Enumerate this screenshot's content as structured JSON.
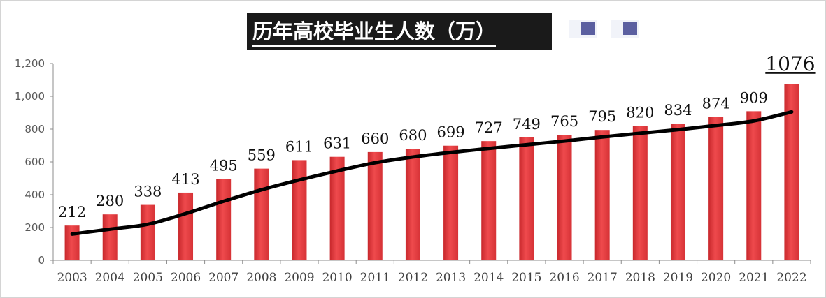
{
  "chart_data": {
    "type": "bar",
    "title": "历年高校毕业生人数（万）",
    "categories": [
      "2003",
      "2004",
      "2005",
      "2006",
      "2007",
      "2008",
      "2009",
      "2010",
      "2011",
      "2012",
      "2013",
      "2014",
      "2015",
      "2016",
      "2017",
      "2018",
      "2019",
      "2020",
      "2021",
      "2022"
    ],
    "series": [
      {
        "values": [
          212,
          280,
          338,
          413,
          495,
          559,
          611,
          631,
          660,
          680,
          699,
          727,
          749,
          765,
          795,
          820,
          834,
          874,
          909,
          1076
        ],
        "color": "#e03a3e"
      }
    ],
    "trend_line": {
      "values": [
        160,
        190,
        220,
        285,
        360,
        430,
        490,
        545,
        595,
        630,
        658,
        682,
        705,
        727,
        752,
        775,
        797,
        822,
        850,
        905
      ],
      "color": "#000000"
    },
    "data_labels": [
      "212",
      "280",
      "338",
      "413",
      "495",
      "559",
      "611",
      "631",
      "660",
      "680",
      "699",
      "727",
      "749",
      "765",
      "795",
      "820",
      "834",
      "874",
      "909",
      "1076"
    ],
    "ylim": [
      0,
      1200
    ],
    "yticks": [
      0,
      200,
      400,
      600,
      800,
      1000,
      1200
    ],
    "ytick_labels": [
      "0",
      "200",
      "400",
      "600",
      "800",
      "1,000",
      "1,200"
    ],
    "grid": false,
    "legend_colors": [
      "#5b5fa0",
      "#5b5fa0"
    ]
  }
}
